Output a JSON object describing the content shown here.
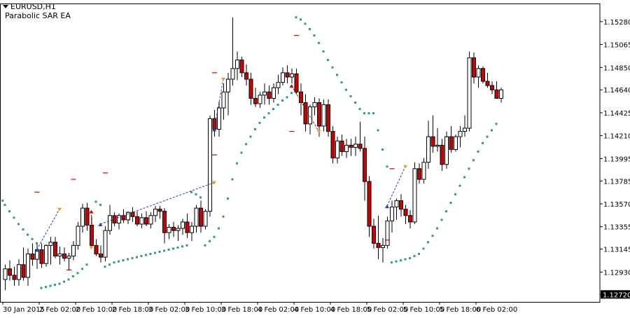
{
  "header": {
    "symbol": "EURUSD,H1",
    "ea_name": "Parabolic SAR EA"
  },
  "current_price": "1.12720",
  "colors": {
    "bull": "#ffffff",
    "bear": "#cc0000",
    "sar": "#2e9e6b",
    "trade_buy_line": "#1f3fb0",
    "trade_sell_line": "#cc0000",
    "arrow": "#e8a020",
    "axis": "#000000",
    "price_box": "#000000"
  },
  "chart_data": {
    "type": "candlestick",
    "timeframe": "H1",
    "ylim": [
      1.1265,
      1.1545
    ],
    "y_ticks": [
      "1.15280",
      "1.15065",
      "1.14850",
      "1.14640",
      "1.14425",
      "1.14210",
      "1.13995",
      "1.13785",
      "1.13570",
      "1.13355",
      "1.13145",
      "1.12930",
      "1.12720"
    ],
    "x_ticks": [
      "30 Jan 2015",
      "2 Feb 02:00",
      "2 Feb 10:00",
      "2 Feb 18:00",
      "3 Feb 02:00",
      "3 Feb 10:00",
      "3 Feb 18:00",
      "4 Feb 02:00",
      "4 Feb 10:00",
      "4 Feb 18:00",
      "5 Feb 02:00",
      "5 Feb 10:00",
      "5 Feb 18:00",
      "6 Feb 02:00"
    ],
    "candles": [
      [
        1.1286,
        1.13,
        1.1276,
        1.1296
      ],
      [
        1.1296,
        1.1304,
        1.1285,
        1.129
      ],
      [
        1.129,
        1.1298,
        1.128,
        1.1286
      ],
      [
        1.1286,
        1.1305,
        1.128,
        1.13
      ],
      [
        1.13,
        1.1316,
        1.1285,
        1.1288
      ],
      [
        1.1288,
        1.1315,
        1.128,
        1.131
      ],
      [
        1.131,
        1.132,
        1.1299,
        1.1305
      ],
      [
        1.1305,
        1.1319,
        1.1296,
        1.1314
      ],
      [
        1.1314,
        1.132,
        1.1297,
        1.1301
      ],
      [
        1.1301,
        1.1319,
        1.1298,
        1.1318
      ],
      [
        1.1318,
        1.1326,
        1.13,
        1.1321
      ],
      [
        1.1321,
        1.1326,
        1.1306,
        1.1308
      ],
      [
        1.1308,
        1.1317,
        1.13,
        1.131
      ],
      [
        1.131,
        1.1316,
        1.1303,
        1.1306
      ],
      [
        1.1306,
        1.1311,
        1.1295,
        1.1308
      ],
      [
        1.1308,
        1.1322,
        1.1304,
        1.1318
      ],
      [
        1.1318,
        1.134,
        1.1314,
        1.1336
      ],
      [
        1.1336,
        1.1357,
        1.133,
        1.1353
      ],
      [
        1.1353,
        1.1358,
        1.1332,
        1.1337
      ],
      [
        1.1337,
        1.1345,
        1.1315,
        1.1318
      ],
      [
        1.1318,
        1.1324,
        1.1308,
        1.131
      ],
      [
        1.131,
        1.1318,
        1.1302,
        1.1307
      ],
      [
        1.1307,
        1.1336,
        1.1303,
        1.1332
      ],
      [
        1.1332,
        1.1356,
        1.1328,
        1.1346
      ],
      [
        1.1346,
        1.1349,
        1.1336,
        1.1339
      ],
      [
        1.1339,
        1.1348,
        1.1333,
        1.1346
      ],
      [
        1.1346,
        1.1352,
        1.1339,
        1.1342
      ],
      [
        1.1342,
        1.135,
        1.1338,
        1.1349
      ],
      [
        1.1349,
        1.1354,
        1.134,
        1.1345
      ],
      [
        1.1345,
        1.135,
        1.1336,
        1.1338
      ],
      [
        1.1338,
        1.1348,
        1.1334,
        1.1344
      ],
      [
        1.1344,
        1.135,
        1.1336,
        1.1338
      ],
      [
        1.1338,
        1.1349,
        1.1334,
        1.1346
      ],
      [
        1.1346,
        1.1355,
        1.134,
        1.1352
      ],
      [
        1.1352,
        1.1355,
        1.1343,
        1.135
      ],
      [
        1.135,
        1.1353,
        1.132,
        1.133
      ],
      [
        1.133,
        1.1338,
        1.1324,
        1.1335
      ],
      [
        1.1335,
        1.134,
        1.1326,
        1.1332
      ],
      [
        1.1332,
        1.1337,
        1.1322,
        1.1334
      ],
      [
        1.1334,
        1.1343,
        1.1328,
        1.134
      ],
      [
        1.134,
        1.1348,
        1.1325,
        1.133
      ],
      [
        1.133,
        1.134,
        1.1322,
        1.1336
      ],
      [
        1.1336,
        1.1356,
        1.133,
        1.1353
      ],
      [
        1.1353,
        1.136,
        1.133,
        1.1336
      ],
      [
        1.1336,
        1.1352,
        1.1333,
        1.135
      ],
      [
        1.135,
        1.144,
        1.1345,
        1.1437
      ],
      [
        1.1437,
        1.1445,
        1.142,
        1.1427
      ],
      [
        1.1427,
        1.1453,
        1.142,
        1.1447
      ],
      [
        1.1447,
        1.147,
        1.1436,
        1.1462
      ],
      [
        1.1462,
        1.148,
        1.144,
        1.1474
      ],
      [
        1.1474,
        1.1532,
        1.1468,
        1.1484
      ],
      [
        1.1484,
        1.15,
        1.1473,
        1.1492
      ],
      [
        1.1492,
        1.1495,
        1.1476,
        1.148
      ],
      [
        1.148,
        1.1488,
        1.1468,
        1.1474
      ],
      [
        1.1474,
        1.148,
        1.145,
        1.1456
      ],
      [
        1.1456,
        1.1466,
        1.1448,
        1.1451
      ],
      [
        1.1451,
        1.1462,
        1.1447,
        1.1459
      ],
      [
        1.1459,
        1.147,
        1.145,
        1.1462
      ],
      [
        1.1462,
        1.1468,
        1.145,
        1.1456
      ],
      [
        1.1456,
        1.147,
        1.1452,
        1.1466
      ],
      [
        1.1466,
        1.1478,
        1.146,
        1.1471
      ],
      [
        1.1471,
        1.1485,
        1.1468,
        1.148
      ],
      [
        1.148,
        1.1487,
        1.147,
        1.1476
      ],
      [
        1.1476,
        1.1484,
        1.147,
        1.1479
      ],
      [
        1.1479,
        1.1484,
        1.146,
        1.1462
      ],
      [
        1.1462,
        1.147,
        1.144,
        1.1452
      ],
      [
        1.1452,
        1.146,
        1.1425,
        1.1432
      ],
      [
        1.1432,
        1.145,
        1.1422,
        1.1448
      ],
      [
        1.1448,
        1.1457,
        1.144,
        1.1452
      ],
      [
        1.1452,
        1.1456,
        1.142,
        1.143
      ],
      [
        1.143,
        1.1455,
        1.1425,
        1.145
      ],
      [
        1.145,
        1.1455,
        1.142,
        1.1425
      ],
      [
        1.1425,
        1.143,
        1.1395,
        1.14
      ],
      [
        1.14,
        1.142,
        1.1395,
        1.1416
      ],
      [
        1.1416,
        1.1422,
        1.1402,
        1.1406
      ],
      [
        1.1406,
        1.1418,
        1.14,
        1.1412
      ],
      [
        1.1412,
        1.1418,
        1.1402,
        1.141
      ],
      [
        1.141,
        1.142,
        1.1402,
        1.1413
      ],
      [
        1.1413,
        1.1434,
        1.1406,
        1.1409
      ],
      [
        1.1409,
        1.142,
        1.136,
        1.1378
      ],
      [
        1.1378,
        1.1383,
        1.1326,
        1.1336
      ],
      [
        1.1336,
        1.1343,
        1.1315,
        1.132
      ],
      [
        1.132,
        1.1346,
        1.1305,
        1.1316
      ],
      [
        1.1316,
        1.1325,
        1.1302,
        1.1318
      ],
      [
        1.1318,
        1.1345,
        1.1315,
        1.1341
      ],
      [
        1.1341,
        1.136,
        1.133,
        1.1354
      ],
      [
        1.1354,
        1.1362,
        1.1342,
        1.136
      ],
      [
        1.136,
        1.1366,
        1.1345,
        1.1352
      ],
      [
        1.1352,
        1.1356,
        1.1338,
        1.1346
      ],
      [
        1.1346,
        1.1351,
        1.1334,
        1.134
      ],
      [
        1.134,
        1.1396,
        1.1338,
        1.139
      ],
      [
        1.139,
        1.1395,
        1.1376,
        1.138
      ],
      [
        1.138,
        1.14,
        1.1376,
        1.1396
      ],
      [
        1.1396,
        1.1435,
        1.139,
        1.142
      ],
      [
        1.142,
        1.144,
        1.1405,
        1.1411
      ],
      [
        1.1411,
        1.1428,
        1.1406,
        1.1412
      ],
      [
        1.1412,
        1.1418,
        1.1388,
        1.1394
      ],
      [
        1.1394,
        1.1425,
        1.139,
        1.142
      ],
      [
        1.142,
        1.143,
        1.1405,
        1.1408
      ],
      [
        1.1408,
        1.1422,
        1.1406,
        1.142
      ],
      [
        1.142,
        1.143,
        1.141,
        1.1425
      ],
      [
        1.1425,
        1.144,
        1.142,
        1.1428
      ],
      [
        1.1428,
        1.15,
        1.1425,
        1.1494
      ],
      [
        1.1494,
        1.1499,
        1.147,
        1.1476
      ],
      [
        1.1476,
        1.1487,
        1.1466,
        1.1484
      ],
      [
        1.1484,
        1.1486,
        1.147,
        1.1472
      ],
      [
        1.1472,
        1.148,
        1.1466,
        1.1468
      ],
      [
        1.1468,
        1.1472,
        1.146,
        1.1464
      ],
      [
        1.1464,
        1.1472,
        1.1456,
        1.1456
      ],
      [
        1.1456,
        1.1466,
        1.1452,
        1.1464
      ]
    ],
    "sar": [
      [
        -0.5,
        1.136
      ],
      [
        0,
        1.1356
      ],
      [
        1,
        1.135
      ],
      [
        2,
        1.1344
      ],
      [
        3,
        1.1338
      ],
      [
        4,
        1.1333
      ],
      [
        5,
        1.1328
      ],
      [
        6,
        1.1324
      ],
      [
        7,
        1.132
      ],
      [
        8,
        1.1278
      ],
      [
        9,
        1.1279
      ],
      [
        10,
        1.128
      ],
      [
        11,
        1.1281
      ],
      [
        12,
        1.1282
      ],
      [
        13,
        1.1284
      ],
      [
        14,
        1.1286
      ],
      [
        15,
        1.1289
      ],
      [
        16,
        1.1292
      ],
      [
        17,
        1.1296
      ],
      [
        18,
        1.13
      ],
      [
        20,
        1.1359
      ],
      [
        21,
        1.1356
      ],
      [
        22,
        1.1298
      ],
      [
        23,
        1.13
      ],
      [
        24,
        1.1302
      ],
      [
        25,
        1.1303
      ],
      [
        26,
        1.1304
      ],
      [
        27,
        1.1305
      ],
      [
        28,
        1.1306
      ],
      [
        29,
        1.1307
      ],
      [
        30,
        1.1308
      ],
      [
        31,
        1.1309
      ],
      [
        32,
        1.131
      ],
      [
        33,
        1.1311
      ],
      [
        34,
        1.1312
      ],
      [
        35,
        1.1313
      ],
      [
        36,
        1.1314
      ],
      [
        37,
        1.1315
      ],
      [
        38,
        1.1316
      ],
      [
        39,
        1.1317
      ],
      [
        40,
        1.1318
      ],
      [
        41,
        1.1368
      ],
      [
        42,
        1.1366
      ],
      [
        43,
        1.1363
      ],
      [
        44,
        1.1318
      ],
      [
        45,
        1.1322
      ],
      [
        46,
        1.1326
      ],
      [
        47,
        1.1334
      ],
      [
        48,
        1.1345
      ],
      [
        49,
        1.1362
      ],
      [
        50,
        1.138
      ],
      [
        51,
        1.1395
      ],
      [
        52,
        1.1405
      ],
      [
        53,
        1.1413
      ],
      [
        54,
        1.142
      ],
      [
        55,
        1.1427
      ],
      [
        56,
        1.1433
      ],
      [
        57,
        1.1438
      ],
      [
        58,
        1.1442
      ],
      [
        59,
        1.1446
      ],
      [
        60,
        1.145
      ],
      [
        61,
        1.1454
      ],
      [
        62,
        1.1457
      ],
      [
        63,
        1.1461
      ],
      [
        64,
        1.1532
      ],
      [
        65,
        1.153
      ],
      [
        66,
        1.1526
      ],
      [
        67,
        1.1521
      ],
      [
        68,
        1.1515
      ],
      [
        69,
        1.1508
      ],
      [
        70,
        1.15
      ],
      [
        71,
        1.1492
      ],
      [
        72,
        1.1485
      ],
      [
        73,
        1.1478
      ],
      [
        74,
        1.1471
      ],
      [
        75,
        1.1464
      ],
      [
        76,
        1.1458
      ],
      [
        77,
        1.1452
      ],
      [
        78,
        1.1446
      ],
      [
        79,
        1.1442
      ],
      [
        80,
        1.1442
      ],
      [
        81,
        1.1442
      ],
      [
        82,
        1.1426
      ],
      [
        83,
        1.1408
      ],
      [
        84,
        1.1392
      ],
      [
        85,
        1.1302
      ],
      [
        86,
        1.1303
      ],
      [
        87,
        1.1304
      ],
      [
        88,
        1.1305
      ],
      [
        89,
        1.1306
      ],
      [
        90,
        1.1308
      ],
      [
        91,
        1.131
      ],
      [
        92,
        1.1315
      ],
      [
        93,
        1.1321
      ],
      [
        94,
        1.1327
      ],
      [
        95,
        1.1334
      ],
      [
        96,
        1.1342
      ],
      [
        97,
        1.135
      ],
      [
        98,
        1.1358
      ],
      [
        99,
        1.1366
      ],
      [
        100,
        1.1374
      ],
      [
        101,
        1.1382
      ],
      [
        102,
        1.139
      ],
      [
        103,
        1.1398
      ],
      [
        104,
        1.1406
      ],
      [
        105,
        1.1414
      ],
      [
        106,
        1.142
      ],
      [
        107,
        1.1426
      ],
      [
        108,
        1.1432
      ]
    ],
    "trades": [
      {
        "side": "buy",
        "from": [
          7,
          1.1314
        ],
        "to": [
          12,
          1.1352
        ]
      },
      {
        "side": "sell",
        "from": [
          19,
          1.135
        ],
        "to": [
          19,
          1.1316
        ]
      },
      {
        "side": "buy",
        "from": [
          21,
          1.1338
        ],
        "to": [
          46,
          1.1377
        ]
      },
      {
        "side": "buy",
        "from": [
          46,
          1.1427
        ],
        "to": [
          48,
          1.1474
        ]
      },
      {
        "side": "sell",
        "from": [
          63,
          1.1468
        ],
        "to": [
          69,
          1.1425
        ]
      },
      {
        "side": "buy",
        "from": [
          84,
          1.1355
        ],
        "to": [
          88,
          1.1392
        ]
      }
    ],
    "dash_markers": [
      [
        7,
        1.1368
      ],
      [
        15,
        1.138
      ],
      [
        22,
        1.1386
      ],
      [
        14,
        1.1295
      ],
      [
        46,
        1.1403
      ],
      [
        46,
        1.148
      ],
      [
        64,
        1.1515
      ],
      [
        63,
        1.1425
      ],
      [
        85,
        1.139
      ],
      [
        84,
        1.1323
      ]
    ]
  }
}
